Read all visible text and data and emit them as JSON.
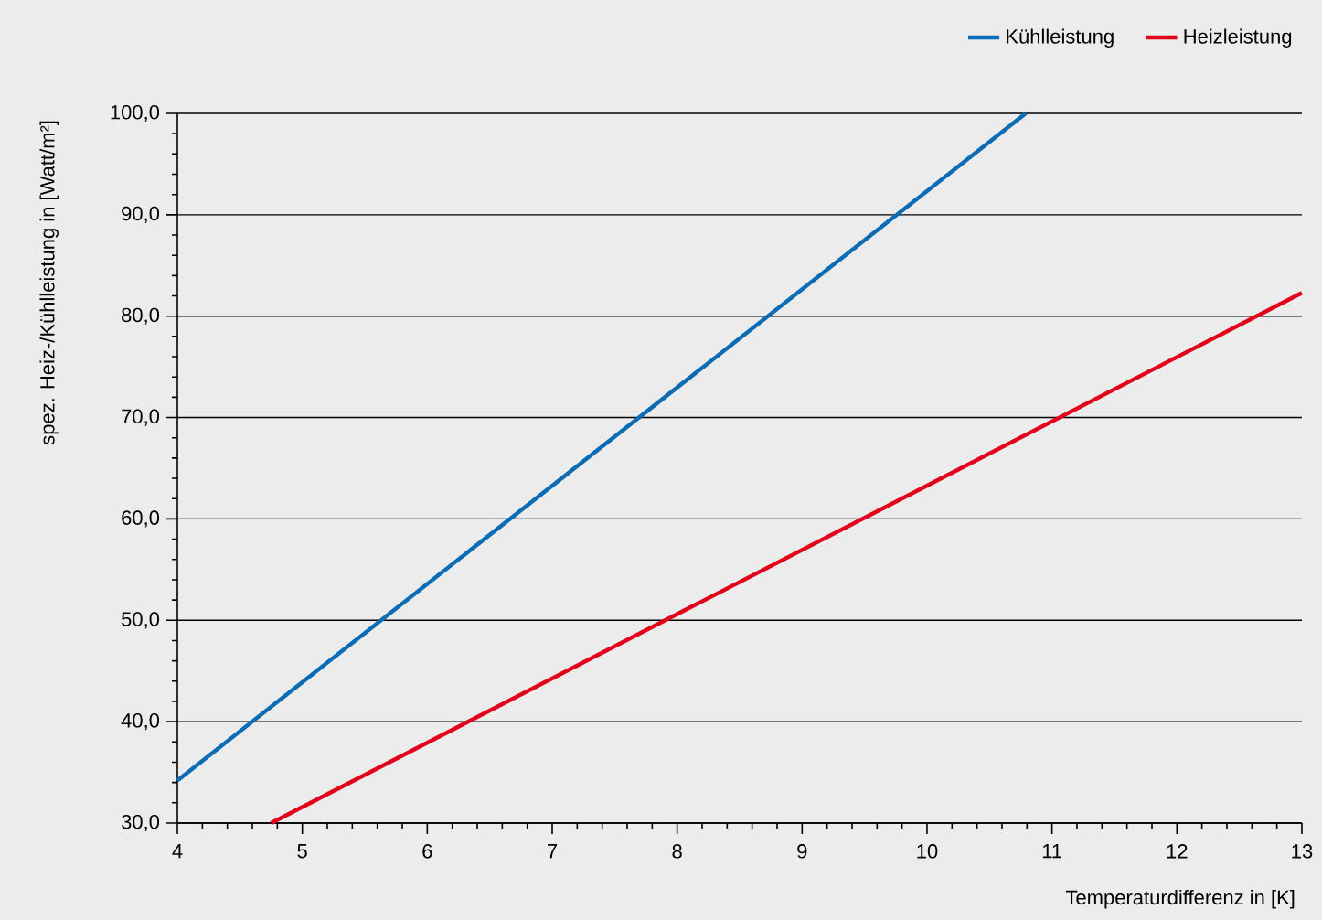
{
  "chart_data": {
    "type": "line",
    "xlabel": "Temperaturdifferenz in [K]",
    "ylabel": "spez. Heiz-/Kühlleistung in [Watt/m²]",
    "xlim": [
      4,
      13
    ],
    "xticks": [
      4,
      5,
      6,
      7,
      8,
      9,
      10,
      11,
      12,
      13
    ],
    "ylim": [
      30,
      100
    ],
    "yticks": [
      {
        "value": 30,
        "label": "30,0"
      },
      {
        "value": 40,
        "label": "40,0"
      },
      {
        "value": 50,
        "label": "50,0"
      },
      {
        "value": 60,
        "label": "60,0"
      },
      {
        "value": 70,
        "label": "70,0"
      },
      {
        "value": 80,
        "label": "80,0"
      },
      {
        "value": 90,
        "label": "90,0"
      },
      {
        "value": 100,
        "label": "100,0"
      }
    ],
    "grid": "y",
    "legend": "top right",
    "marker": "none",
    "line_style": "solid",
    "series": [
      {
        "name": "Kühlleistung",
        "color": "#0a6cb4",
        "x": [
          4,
          10.79
        ],
        "values": [
          34.2,
          100
        ]
      },
      {
        "name": "Heizleistung",
        "color": "#e3001b",
        "x": [
          4.75,
          13
        ],
        "values": [
          30,
          82.3
        ]
      }
    ]
  }
}
